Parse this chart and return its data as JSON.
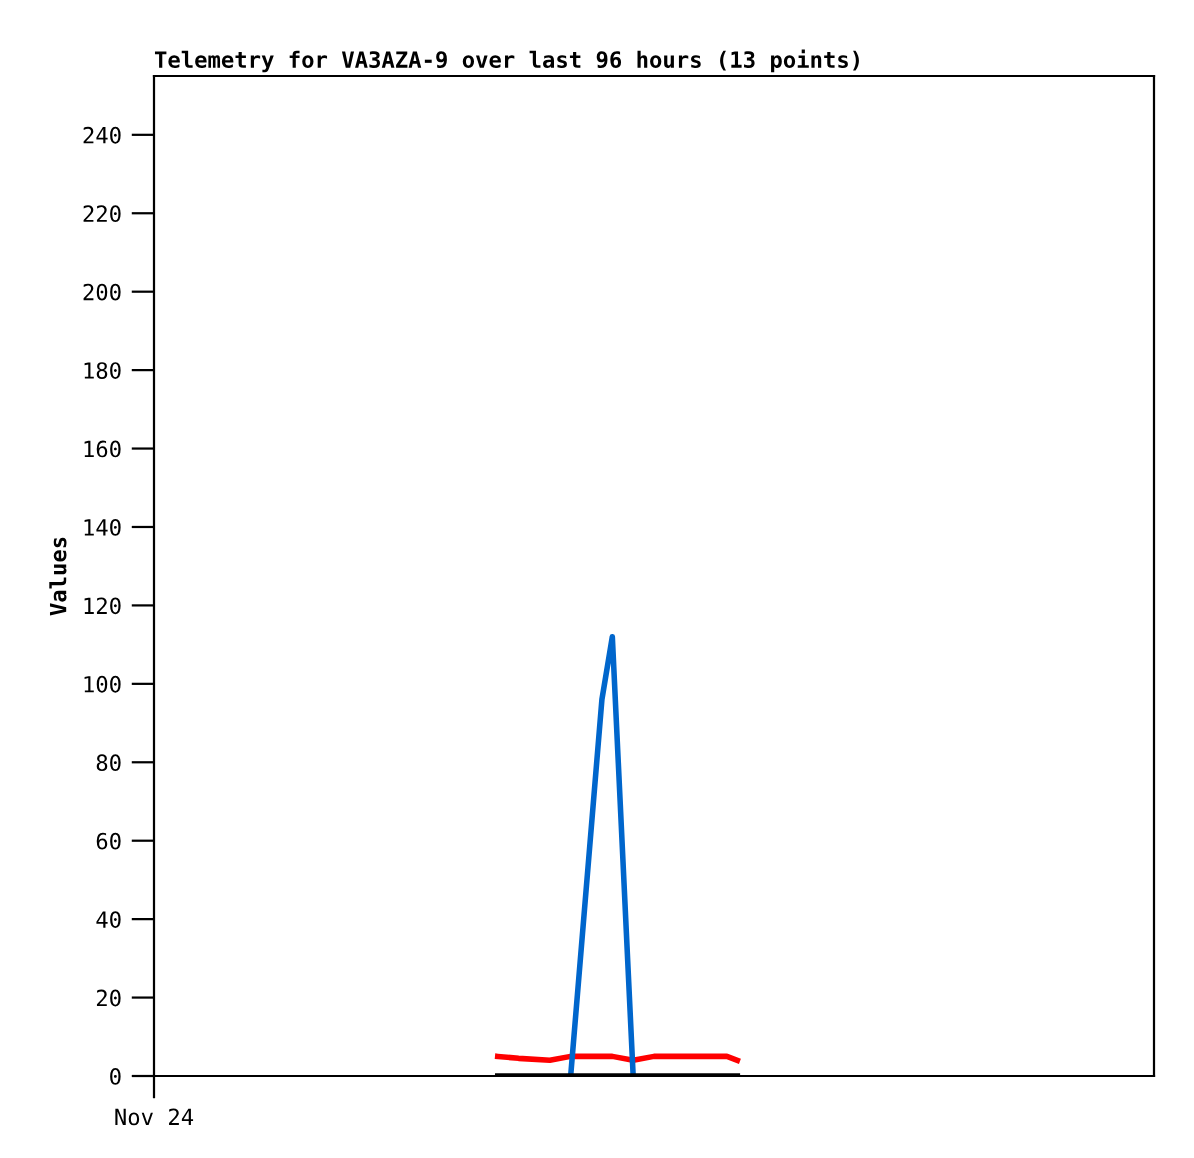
{
  "chart_data": {
    "type": "line",
    "title": "Telemetry for VA3AZA-9 over last 96 hours (13 points)",
    "ylabel": "Values",
    "categories": [
      "Nov 24",
      null,
      null,
      null,
      null,
      null,
      null,
      null,
      null,
      null,
      null,
      null,
      null,
      null,
      null,
      null,
      null,
      null,
      null,
      null,
      null,
      null,
      null,
      null,
      null,
      null,
      null,
      null,
      null,
      null,
      null,
      null,
      null,
      null,
      null,
      null,
      null,
      null,
      null,
      null,
      null,
      null,
      null,
      null,
      null,
      null,
      null,
      null,
      null,
      null,
      null,
      null,
      null,
      null,
      null,
      null,
      null,
      null,
      null,
      null,
      null,
      null,
      null,
      null,
      null,
      null,
      null,
      null,
      null,
      null,
      null,
      null,
      null,
      null,
      null,
      null,
      null,
      null,
      null,
      null,
      null,
      null,
      null,
      null,
      null,
      null,
      null,
      null,
      null,
      null,
      null,
      null,
      null,
      null,
      null,
      null,
      null
    ],
    "ylim": [
      0,
      255
    ],
    "yticks": [
      0,
      20,
      40,
      60,
      80,
      100,
      120,
      140,
      160,
      180,
      200,
      220,
      240
    ],
    "marker": "none",
    "line_style": "solid",
    "series": [
      {
        "color": "#ff0000",
        "values": [
          null,
          null,
          null,
          null,
          null,
          null,
          null,
          null,
          null,
          null,
          null,
          null,
          null,
          null,
          null,
          null,
          null,
          null,
          null,
          null,
          null,
          null,
          null,
          null,
          null,
          null,
          null,
          null,
          null,
          null,
          null,
          null,
          null,
          5,
          null,
          4.5,
          null,
          null,
          4,
          null,
          5,
          null,
          null,
          5,
          5,
          null,
          4,
          null,
          5,
          null,
          5,
          null,
          null,
          5,
          null,
          5,
          4,
          null,
          null,
          null,
          null,
          null,
          null,
          null,
          null,
          null,
          null,
          null,
          null,
          null,
          null,
          null,
          null,
          null,
          null,
          null,
          null,
          null,
          null,
          null,
          null,
          null,
          null,
          null,
          null,
          null,
          null,
          null,
          null,
          null,
          null,
          null,
          null,
          null,
          null,
          null,
          null
        ]
      },
      {
        "color": "#000000",
        "values": [
          null,
          null,
          null,
          null,
          null,
          null,
          null,
          null,
          null,
          null,
          null,
          null,
          null,
          null,
          null,
          null,
          null,
          null,
          null,
          null,
          null,
          null,
          null,
          null,
          null,
          null,
          null,
          null,
          null,
          null,
          null,
          null,
          null,
          0,
          null,
          0,
          null,
          null,
          0,
          null,
          0,
          null,
          null,
          0,
          0,
          null,
          0,
          null,
          0,
          null,
          0,
          null,
          null,
          0,
          null,
          0,
          0,
          null,
          null,
          null,
          null,
          null,
          null,
          null,
          null,
          null,
          null,
          null,
          null,
          null,
          null,
          null,
          null,
          null,
          null,
          null,
          null,
          null,
          null,
          null,
          null,
          null,
          null,
          null,
          null,
          null,
          null,
          null,
          null,
          null,
          null,
          null,
          null,
          null,
          null,
          null,
          null
        ]
      },
      {
        "color": "#0066cc",
        "values": [
          null,
          null,
          null,
          null,
          null,
          null,
          null,
          null,
          null,
          null,
          null,
          null,
          null,
          null,
          null,
          null,
          null,
          null,
          null,
          null,
          null,
          null,
          null,
          null,
          null,
          null,
          null,
          null,
          null,
          null,
          null,
          null,
          null,
          null,
          null,
          null,
          null,
          null,
          null,
          null,
          0,
          null,
          null,
          96,
          112,
          null,
          0,
          null,
          null,
          null,
          null,
          null,
          null,
          null,
          null,
          null,
          null,
          null,
          null,
          null,
          null,
          null,
          null,
          null,
          null,
          null,
          null,
          null,
          null,
          null,
          null,
          null,
          null,
          null,
          null,
          null,
          null,
          null,
          null,
          null,
          null,
          null,
          null,
          null,
          null,
          null,
          null,
          null,
          null,
          null,
          null,
          null,
          null,
          null,
          null,
          null,
          null
        ]
      }
    ]
  }
}
